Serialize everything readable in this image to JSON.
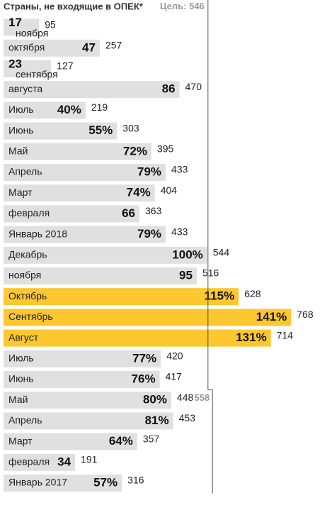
{
  "chart_data": {
    "type": "bar",
    "orientation": "horizontal",
    "title": "Страны, не входящие в ОПЕК*",
    "target_label": "Цель:",
    "target": 546,
    "target2": 558,
    "categories": [
      "ноября",
      "октября",
      "сентября",
      "августа",
      "Июль",
      "Июнь",
      "Май",
      "Апрель",
      "Март",
      "февраля",
      "Январь 2018",
      "Декабрь",
      "ноября",
      "Октябрь",
      "Сентябрь",
      "Август",
      "Июль",
      "Июнь",
      "Май",
      "Апрель",
      "Март",
      "февраля",
      "Январь 2017"
    ],
    "shares": [
      "17",
      "47",
      "23",
      "86",
      "40%",
      "55%",
      "72%",
      "79%",
      "74%",
      "66",
      "79%",
      "100%",
      "95",
      "115%",
      "141%",
      "131%",
      "77%",
      "76%",
      "80%",
      "81%",
      "64%",
      "34",
      "57%"
    ],
    "values": [
      95,
      257,
      127,
      470,
      219,
      303,
      395,
      433,
      404,
      363,
      433,
      544,
      516,
      628,
      768,
      714,
      420,
      417,
      448,
      453,
      357,
      191,
      316
    ],
    "colors": [
      "#e0e0e0",
      "#e0e0e0",
      "#e0e0e0",
      "#e0e0e0",
      "#e0e0e0",
      "#e0e0e0",
      "#e0e0e0",
      "#e0e0e0",
      "#e0e0e0",
      "#e0e0e0",
      "#e0e0e0",
      "#e0e0e0",
      "#e0e0e0",
      "#fcc72f",
      "#fcc72f",
      "#fcc72f",
      "#e0e0e0",
      "#e0e0e0",
      "#e0e0e0",
      "#e0e0e0",
      "#e0e0e0",
      "#e0e0e0",
      "#e0e0e0"
    ]
  }
}
